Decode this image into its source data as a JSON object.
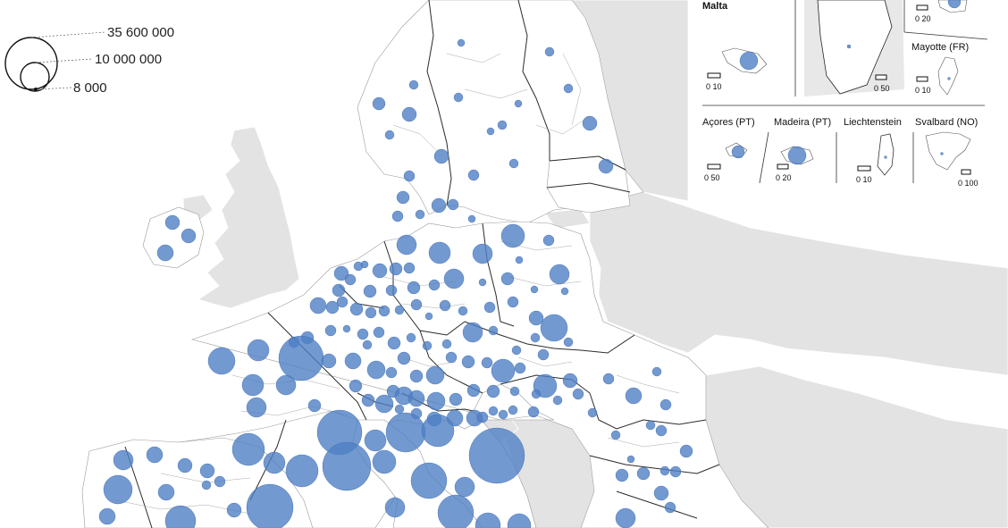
{
  "colors": {
    "bubble": "#4f7fc4",
    "nonmember": "#e3e3e3",
    "region_fill": "#ffffff",
    "border": "#2b2b2b"
  },
  "legend": {
    "items": [
      {
        "label": "35 600 000",
        "value": 35600000
      },
      {
        "label": "10 000 000",
        "value": 10000000
      },
      {
        "label": "8 000",
        "value": 8000
      }
    ]
  },
  "insets": [
    {
      "name": "Malta",
      "scale_label": "0  10"
    },
    {
      "name": "",
      "scale_label": "0  50"
    },
    {
      "name": "",
      "scale_label": "0  20"
    },
    {
      "name": "Mayotte (FR)",
      "scale_label": "0  10"
    },
    {
      "name": "Açores (PT)",
      "scale_label": "0   50"
    },
    {
      "name": "Madeira (PT)",
      "scale_label": "0  20"
    },
    {
      "name": "Liechtenstein",
      "scale_label": "0   10"
    },
    {
      "name": "Svalbard (NO)",
      "scale_label": "0 100"
    }
  ]
}
